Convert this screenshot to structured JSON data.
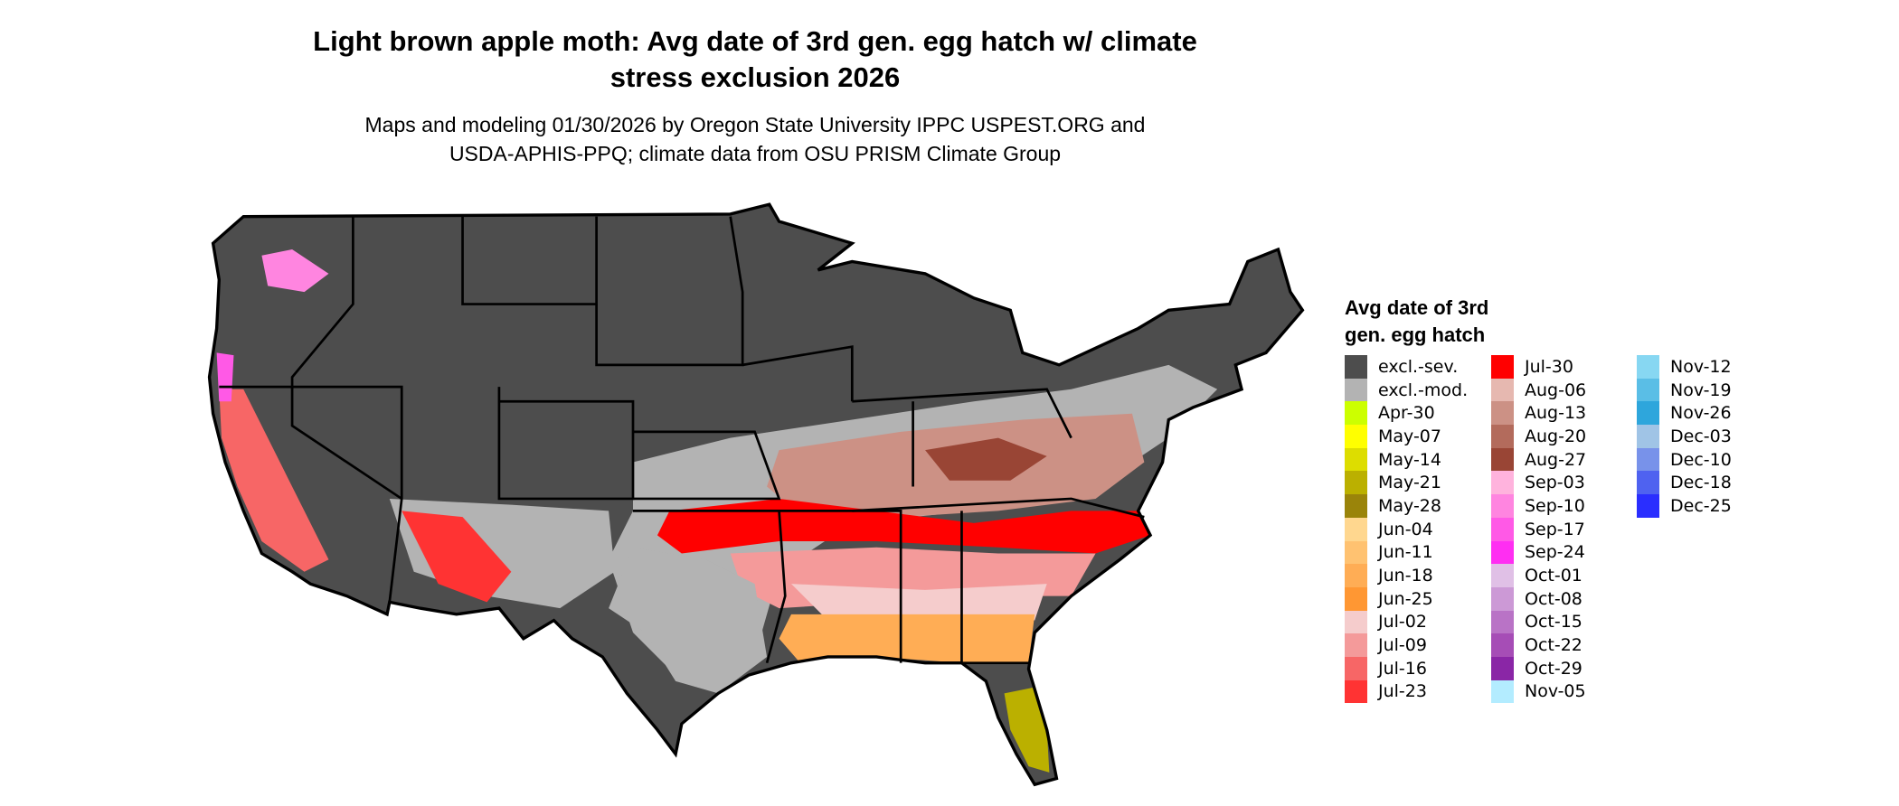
{
  "title": {
    "line1": "Light brown apple moth: Avg date of 3rd gen. egg hatch w/ climate",
    "line2": "stress exclusion 2026"
  },
  "subtitle": {
    "line1": "Maps and modeling 01/30/2026 by Oregon State University IPPC USPEST.ORG and",
    "line2": "USDA-APHIS-PPQ; climate data from OSU PRISM Climate Group"
  },
  "legend": {
    "title_line1": "Avg date of 3rd",
    "title_line2": "gen. egg hatch",
    "columns": [
      [
        {
          "label": "excl.-sev.",
          "color": "#4d4d4d"
        },
        {
          "label": "excl.-mod.",
          "color": "#b3b3b3"
        },
        {
          "label": "Apr-30",
          "color": "#ccff00"
        },
        {
          "label": "May-07",
          "color": "#ffff00"
        },
        {
          "label": "May-14",
          "color": "#dddd00"
        },
        {
          "label": "May-21",
          "color": "#bbb000"
        },
        {
          "label": "May-28",
          "color": "#9a840a"
        },
        {
          "label": "Jun-04",
          "color": "#ffd78f"
        },
        {
          "label": "Jun-11",
          "color": "#ffc271"
        },
        {
          "label": "Jun-18",
          "color": "#ffad55"
        },
        {
          "label": "Jun-25",
          "color": "#ff9733"
        },
        {
          "label": "Jul-02",
          "color": "#f5cccc"
        },
        {
          "label": "Jul-09",
          "color": "#f49a9a"
        },
        {
          "label": "Jul-16",
          "color": "#f76666"
        },
        {
          "label": "Jul-23",
          "color": "#ff3333"
        }
      ],
      [
        {
          "label": "Jul-30",
          "color": "#ff0000"
        },
        {
          "label": "Aug-06",
          "color": "#e6b8b0"
        },
        {
          "label": "Aug-13",
          "color": "#cc9185"
        },
        {
          "label": "Aug-20",
          "color": "#b36b5c"
        },
        {
          "label": "Aug-27",
          "color": "#994535"
        },
        {
          "label": "Sep-03",
          "color": "#ffb3dd"
        },
        {
          "label": "Sep-10",
          "color": "#ff85e0"
        },
        {
          "label": "Sep-17",
          "color": "#ff59e6"
        },
        {
          "label": "Sep-24",
          "color": "#ff2ef2"
        },
        {
          "label": "Oct-01",
          "color": "#e0c0e6"
        },
        {
          "label": "Oct-08",
          "color": "#cc99d6"
        },
        {
          "label": "Oct-15",
          "color": "#b973c6"
        },
        {
          "label": "Oct-22",
          "color": "#a64db6"
        },
        {
          "label": "Oct-29",
          "color": "#8a26a6"
        },
        {
          "label": "Nov-05",
          "color": "#b3ecff"
        }
      ],
      [
        {
          "label": "Nov-12",
          "color": "#87d7f2"
        },
        {
          "label": "Nov-19",
          "color": "#5abee6"
        },
        {
          "label": "Nov-26",
          "color": "#2ea6dc"
        },
        {
          "label": "Dec-03",
          "color": "#a0c4e6"
        },
        {
          "label": "Dec-10",
          "color": "#7892ea"
        },
        {
          "label": "Dec-18",
          "color": "#4f62f0"
        },
        {
          "label": "Dec-25",
          "color": "#2a2eff"
        }
      ]
    ]
  }
}
